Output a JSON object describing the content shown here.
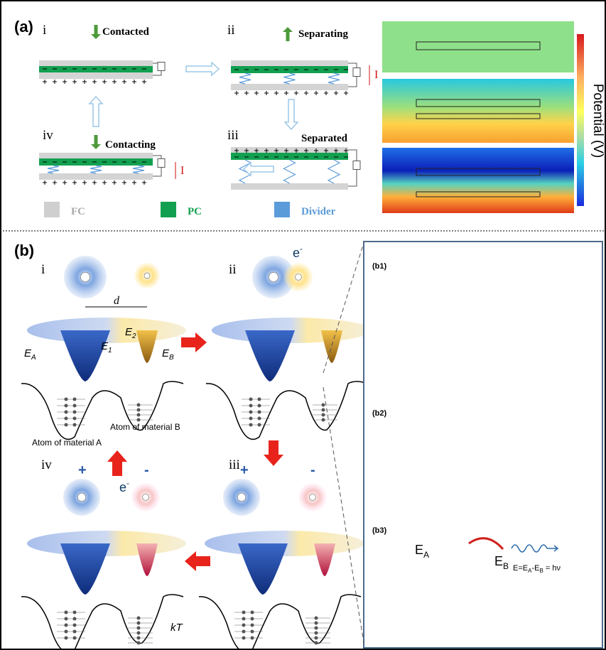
{
  "panel_a": {
    "label": "(a)",
    "stages": [
      {
        "numeral": "i",
        "caption": "Contacted"
      },
      {
        "numeral": "ii",
        "caption": "Separating",
        "current": "I"
      },
      {
        "numeral": "iii",
        "caption": "Separated"
      },
      {
        "numeral": "iv",
        "caption": "Contacting",
        "current": "I"
      }
    ],
    "legend": [
      "FC",
      "PC",
      "Divider"
    ],
    "colorbar_label": "Potential (V)"
  },
  "panel_b": {
    "label": "(b)",
    "step_i": {
      "numeral": "i",
      "distance": "d",
      "e_a": {
        "base": "E",
        "sub": "A"
      },
      "e_1": {
        "base": "E",
        "sub": "1"
      },
      "e_2": {
        "base": "E",
        "sub": "2"
      },
      "e_b": {
        "base": "E",
        "sub": "B"
      },
      "atom_b": "Atom of material B",
      "atom_a": "Atom of material A"
    },
    "step_ii": {
      "numeral": "ii",
      "electron": {
        "base": "e",
        "sup": "-"
      }
    },
    "step_iii": {
      "numeral": "iii",
      "plus": "+",
      "minus": "-"
    },
    "step_iv": {
      "numeral": "iv",
      "plus": "+",
      "minus": "-",
      "electron": {
        "base": "e",
        "sup": "-"
      },
      "thermal": "kT"
    },
    "inset": {
      "labels": [
        "(b1)",
        "(b2)",
        "(b3)"
      ],
      "e_a": {
        "base": "E",
        "sub": "A"
      },
      "e_b": {
        "base": "E",
        "sub": "B"
      },
      "equation": [
        "E=E",
        "A",
        "-E",
        "B",
        " = hν"
      ]
    }
  }
}
